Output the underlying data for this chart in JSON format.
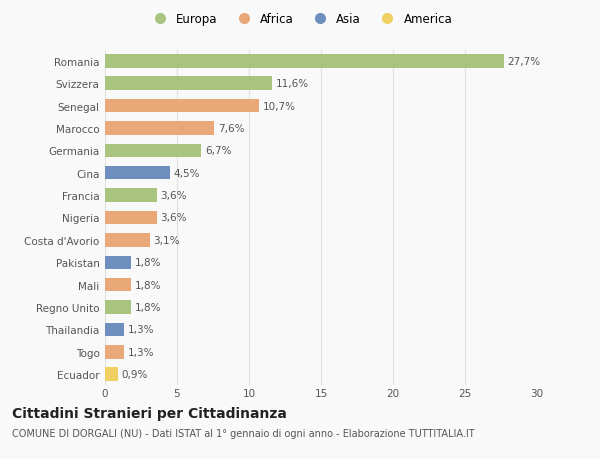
{
  "countries": [
    "Romania",
    "Svizzera",
    "Senegal",
    "Marocco",
    "Germania",
    "Cina",
    "Francia",
    "Nigeria",
    "Costa d'Avorio",
    "Pakistan",
    "Mali",
    "Regno Unito",
    "Thailandia",
    "Togo",
    "Ecuador"
  ],
  "values": [
    27.7,
    11.6,
    10.7,
    7.6,
    6.7,
    4.5,
    3.6,
    3.6,
    3.1,
    1.8,
    1.8,
    1.8,
    1.3,
    1.3,
    0.9
  ],
  "labels": [
    "27,7%",
    "11,6%",
    "10,7%",
    "7,6%",
    "6,7%",
    "4,5%",
    "3,6%",
    "3,6%",
    "3,1%",
    "1,8%",
    "1,8%",
    "1,8%",
    "1,3%",
    "1,3%",
    "0,9%"
  ],
  "continents": [
    "Europa",
    "Europa",
    "Africa",
    "Africa",
    "Europa",
    "Asia",
    "Europa",
    "Africa",
    "Africa",
    "Asia",
    "Africa",
    "Europa",
    "Asia",
    "Africa",
    "America"
  ],
  "colors": {
    "Europa": "#a8c47e",
    "Africa": "#e8a878",
    "Asia": "#6e8fbe",
    "America": "#f0d060"
  },
  "title": "Cittadini Stranieri per Cittadinanza",
  "subtitle": "COMUNE DI DORGALI (NU) - Dati ISTAT al 1° gennaio di ogni anno - Elaborazione TUTTITALIA.IT",
  "xlim": [
    0,
    30
  ],
  "xticks": [
    0,
    5,
    10,
    15,
    20,
    25,
    30
  ],
  "background_color": "#f9f9f9",
  "grid_color": "#e0e0e0",
  "bar_height": 0.6,
  "label_fontsize": 7.5,
  "tick_fontsize": 7.5,
  "title_fontsize": 10,
  "subtitle_fontsize": 7
}
